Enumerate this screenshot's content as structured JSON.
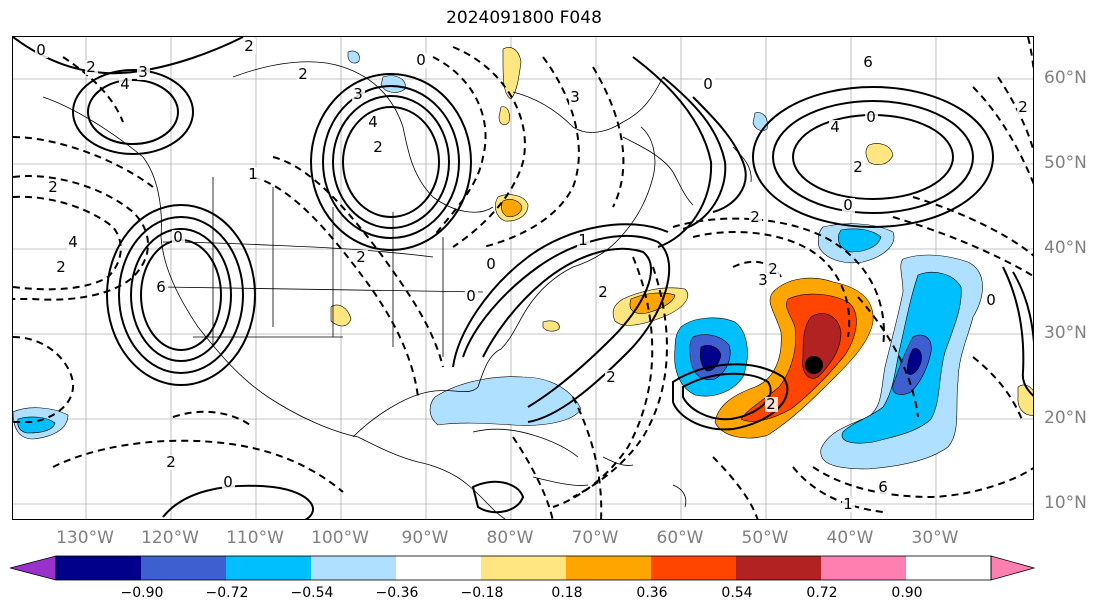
{
  "title": "2024091800 F048",
  "longitude_labels": [
    "130°W",
    "120°W",
    "110°W",
    "100°W",
    "90°W",
    "80°W",
    "70°W",
    "60°W",
    "50°W",
    "40°W",
    "30°W"
  ],
  "latitude_labels": [
    "60°N",
    "50°N",
    "40°N",
    "30°N",
    "20°N",
    "10°N"
  ],
  "contour_labels": [
    "0",
    "2",
    "3",
    "4",
    "2",
    "0",
    "2",
    "3",
    "4",
    "2",
    "6",
    "0",
    "2",
    "4",
    "2",
    "1",
    "2",
    "3",
    "0",
    "6",
    "0",
    "2",
    "4",
    "2",
    "2",
    "2",
    "0",
    "1",
    "0",
    "2",
    "2",
    "0",
    "3",
    "1",
    "6",
    "2",
    "0",
    "0",
    "2"
  ],
  "colorbar": {
    "ticks": [
      "−0.90",
      "−0.72",
      "−0.54",
      "−0.36",
      "−0.18",
      "0.18",
      "0.36",
      "0.54",
      "0.72",
      "0.90"
    ],
    "colors": [
      "#9932cc",
      "#00008b",
      "#3d5fd0",
      "#00bfff",
      "#b0e0ff",
      "#ffffff",
      "#ffe680",
      "#ffa500",
      "#ff4500",
      "#b22222",
      "#ff7fb0"
    ]
  },
  "marker": "black-dot"
}
